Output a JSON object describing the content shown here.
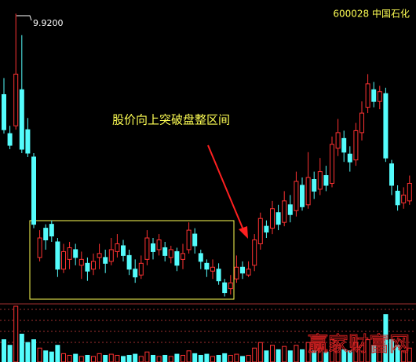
{
  "chart_data": {
    "type": "candlestick",
    "title": "600028 中国石化",
    "annotation": "股价向上突破盘整区间",
    "max_label": {
      "value": 9.92,
      "label": "9.9200"
    },
    "watermark": "赢家财富网",
    "up_color": "#ff3232",
    "down_color": "#54fcfc",
    "ylim": [
      6.96,
      10.06
    ],
    "vlim": [
      0,
      100
    ],
    "open": [
      9.09,
      8.69,
      8.77,
      9.14,
      8.73,
      8.45,
      7.42,
      7.72,
      7.76,
      7.58,
      7.3,
      7.4,
      7.5,
      7.34,
      7.36,
      7.3,
      7.42,
      7.42,
      7.38,
      7.48,
      7.54,
      7.44,
      7.3,
      7.24,
      7.4,
      7.56,
      7.5,
      7.52,
      7.42,
      7.48,
      7.4,
      7.5,
      7.66,
      7.46,
      7.36,
      7.28,
      7.3,
      7.16,
      7.1,
      7.2,
      7.32,
      7.24,
      7.34,
      7.56,
      7.74,
      7.72,
      7.88,
      7.78,
      7.96,
      7.9,
      8.16,
      7.96,
      8.22,
      8.12,
      8.26,
      8.18,
      8.54,
      8.64,
      8.48,
      8.42,
      8.7,
      8.96,
      9.14,
      9.02,
      9.1,
      8.38,
      8.1,
      7.98,
      8.0
    ],
    "close": [
      8.73,
      8.57,
      9.3,
      8.53,
      8.49,
      7.76,
      7.62,
      7.6,
      7.64,
      7.3,
      7.48,
      7.52,
      7.42,
      7.4,
      7.28,
      7.38,
      7.46,
      7.36,
      7.5,
      7.56,
      7.44,
      7.3,
      7.22,
      7.36,
      7.62,
      7.48,
      7.6,
      7.44,
      7.5,
      7.34,
      7.46,
      7.7,
      7.54,
      7.38,
      7.3,
      7.32,
      7.18,
      7.06,
      7.16,
      7.32,
      7.26,
      7.3,
      7.6,
      7.82,
      7.68,
      7.92,
      7.76,
      8.0,
      7.86,
      8.2,
      7.94,
      8.24,
      8.1,
      8.3,
      8.16,
      8.58,
      8.7,
      8.5,
      8.4,
      8.72,
      8.9,
      9.2,
      9.02,
      9.12,
      8.44,
      8.16,
      7.96,
      8.06,
      8.18
    ],
    "high": [
      9.26,
      8.77,
      9.92,
      9.7,
      8.85,
      8.49,
      7.7,
      7.76,
      7.8,
      7.62,
      7.56,
      7.58,
      7.56,
      7.48,
      7.42,
      7.46,
      7.56,
      7.5,
      7.62,
      7.66,
      7.6,
      7.5,
      7.4,
      7.44,
      7.7,
      7.62,
      7.66,
      7.58,
      7.54,
      7.52,
      7.56,
      7.78,
      7.72,
      7.5,
      7.4,
      7.4,
      7.36,
      7.2,
      7.24,
      7.44,
      7.38,
      7.38,
      7.66,
      7.88,
      7.8,
      8.0,
      7.96,
      8.1,
      8.06,
      8.3,
      8.24,
      8.5,
      8.3,
      8.44,
      8.36,
      8.66,
      8.84,
      8.72,
      8.56,
      8.8,
      9.02,
      9.3,
      9.22,
      9.18,
      9.16,
      8.42,
      8.16,
      8.14,
      8.26
    ],
    "low": [
      8.69,
      8.53,
      8.73,
      8.49,
      8.45,
      7.72,
      7.38,
      7.5,
      7.58,
      7.22,
      7.26,
      7.3,
      7.34,
      7.2,
      7.18,
      7.24,
      7.3,
      7.26,
      7.34,
      7.42,
      7.38,
      7.24,
      7.16,
      7.2,
      7.34,
      7.4,
      7.44,
      7.38,
      7.36,
      7.28,
      7.3,
      7.46,
      7.46,
      7.3,
      7.22,
      7.2,
      7.14,
      7.02,
      7.04,
      7.16,
      7.2,
      7.22,
      7.28,
      7.5,
      7.62,
      7.66,
      7.7,
      7.74,
      7.78,
      7.84,
      7.9,
      7.92,
      8.02,
      8.06,
      8.1,
      8.14,
      8.46,
      8.4,
      8.3,
      8.36,
      8.62,
      8.9,
      8.96,
      8.94,
      8.4,
      8.06,
      7.9,
      7.92,
      7.96
    ],
    "volume": [
      40,
      30,
      100,
      50,
      35,
      40,
      25,
      20,
      18,
      30,
      15,
      12,
      14,
      10,
      12,
      10,
      15,
      12,
      14,
      12,
      10,
      12,
      14,
      10,
      18,
      12,
      10,
      12,
      10,
      14,
      12,
      20,
      15,
      12,
      14,
      10,
      12,
      15,
      12,
      14,
      10,
      12,
      25,
      35,
      20,
      30,
      22,
      28,
      20,
      30,
      22,
      35,
      20,
      25,
      18,
      40,
      30,
      22,
      20,
      35,
      30,
      40,
      30,
      28,
      85,
      40,
      30,
      20,
      25
    ]
  }
}
